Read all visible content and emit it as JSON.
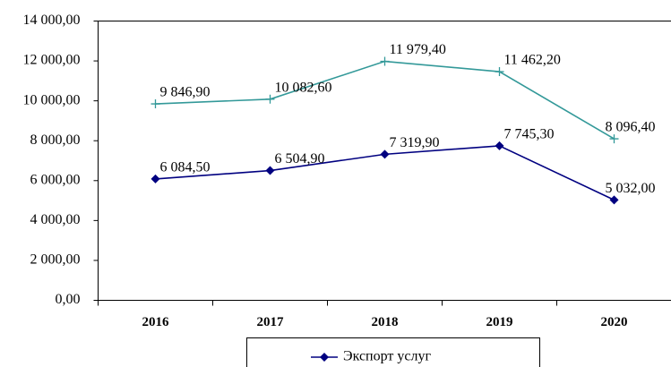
{
  "chart_data": {
    "type": "line",
    "categories": [
      "2016",
      "2017",
      "2018",
      "2019",
      "2020"
    ],
    "series": [
      {
        "name": "Экспорт услуг",
        "color": "#000080",
        "marker": "diamond",
        "values": [
          6084.5,
          6504.9,
          7319.9,
          7745.3,
          5032.0
        ],
        "value_labels": [
          "6 084,50",
          "6 504,90",
          "7 319,90",
          "7 745,30",
          "5 032,00"
        ]
      },
      {
        "color": "#339999",
        "marker": "plus",
        "values": [
          9846.9,
          10082.6,
          11979.4,
          11462.2,
          8096.4
        ],
        "value_labels": [
          "9 846,90",
          "10 082,60",
          "11 979,40",
          "11 462,20",
          "8 096,40"
        ]
      }
    ],
    "ylim": [
      0,
      14000
    ],
    "yticks": [
      {
        "value": 0,
        "label": "0,00"
      },
      {
        "value": 2000,
        "label": "2 000,00"
      },
      {
        "value": 4000,
        "label": "4 000,00"
      },
      {
        "value": 6000,
        "label": "6 000,00"
      },
      {
        "value": 8000,
        "label": "8 000,00"
      },
      {
        "value": 10000,
        "label": "10 000,00"
      },
      {
        "value": 12000,
        "label": "12 000,00"
      },
      {
        "value": 14000,
        "label": "14 000,00"
      }
    ],
    "grid": false
  }
}
